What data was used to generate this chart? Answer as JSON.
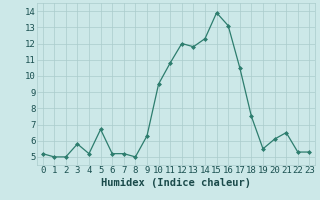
{
  "x": [
    0,
    1,
    2,
    3,
    4,
    5,
    6,
    7,
    8,
    9,
    10,
    11,
    12,
    13,
    14,
    15,
    16,
    17,
    18,
    19,
    20,
    21,
    22,
    23
  ],
  "y": [
    5.2,
    5.0,
    5.0,
    5.8,
    5.2,
    6.7,
    5.2,
    5.2,
    5.0,
    6.3,
    9.5,
    10.8,
    12.0,
    11.8,
    12.3,
    13.9,
    13.1,
    10.5,
    7.5,
    5.5,
    6.1,
    6.5,
    5.3,
    5.3
  ],
  "line_color": "#2d7d6e",
  "marker_color": "#2d7d6e",
  "bg_color": "#cce8e8",
  "grid_color": "#aacccc",
  "xlabel": "Humidex (Indice chaleur)",
  "ylabel": "",
  "xlim": [
    -0.5,
    23.5
  ],
  "ylim": [
    4.5,
    14.5
  ],
  "yticks": [
    5,
    6,
    7,
    8,
    9,
    10,
    11,
    12,
    13,
    14
  ],
  "xticks": [
    0,
    1,
    2,
    3,
    4,
    5,
    6,
    7,
    8,
    9,
    10,
    11,
    12,
    13,
    14,
    15,
    16,
    17,
    18,
    19,
    20,
    21,
    22,
    23
  ],
  "tick_fontsize": 6.5,
  "xlabel_fontsize": 7.5
}
